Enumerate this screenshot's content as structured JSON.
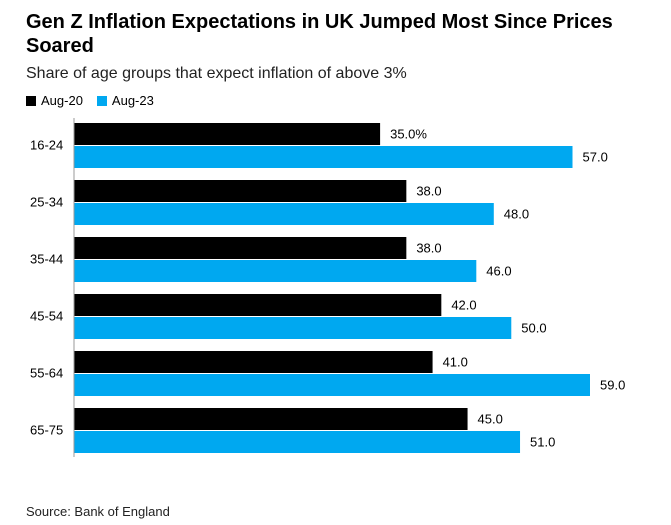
{
  "chart_data": {
    "type": "hbar",
    "title": "Gen Z Inflation Expectations in UK Jumped Most Since Prices Soared",
    "subtitle": "Share of age groups that expect inflation of above 3%",
    "source": "Source: Bank of England",
    "categories": [
      "16-24",
      "25-34",
      "35-44",
      "45-54",
      "55-64",
      "65-75"
    ],
    "series": [
      {
        "name": "Aug-20",
        "color": "#000000",
        "values": [
          35,
          38,
          38,
          42,
          41,
          45
        ],
        "value_labels": [
          "35.0%",
          "38.0",
          "38.0",
          "42.0",
          "41.0",
          "45.0"
        ]
      },
      {
        "name": "Aug-23",
        "color": "#00a8f0",
        "values": [
          57,
          48,
          46,
          50,
          59,
          51
        ],
        "value_labels": [
          "57.0",
          "48.0",
          "46.0",
          "50.0",
          "59.0",
          "51.0"
        ]
      }
    ]
  }
}
